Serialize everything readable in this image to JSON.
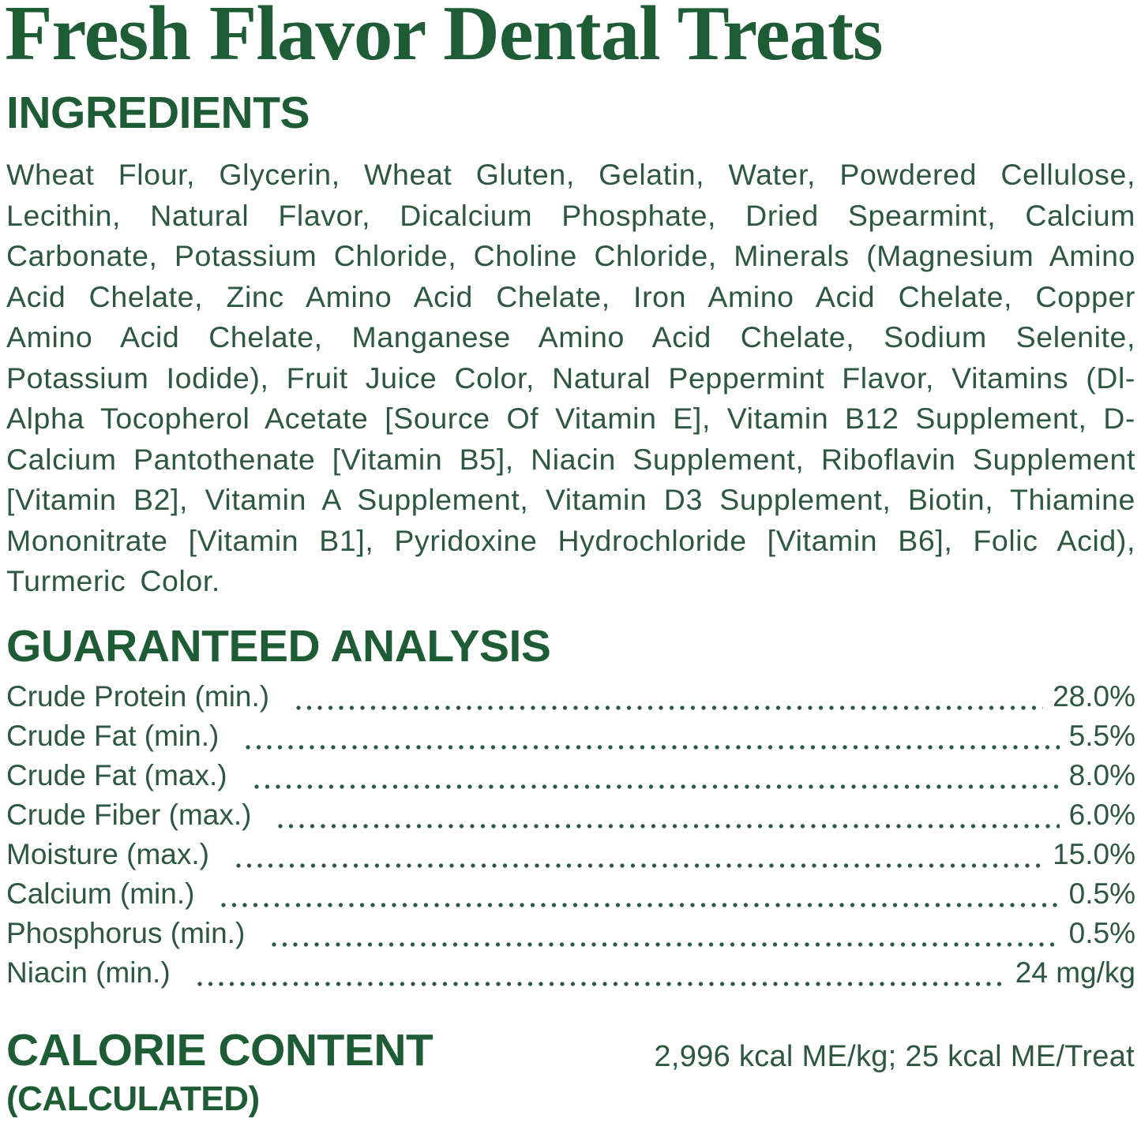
{
  "title": "Fresh Flavor Dental Treats",
  "colors": {
    "heading_green": "#1d5c35",
    "body_green": "#2d5742"
  },
  "ingredients": {
    "heading": "INGREDIENTS",
    "text": "Wheat Flour, Glycerin, Wheat Gluten, Gelatin, Water, Powdered Cellulose, Lecithin, Natural Flavor, Dicalcium Phosphate, Dried Spearmint, Calcium Carbonate, Potassium Chloride, Choline Chloride, Minerals (Magnesium Amino Acid Chelate, Zinc Amino Acid Chelate, Iron Amino Acid Chelate, Copper Amino Acid Chelate, Manganese Amino Acid Chelate, Sodium Selenite, Potassium Iodide), Fruit Juice Color, Natural Peppermint Flavor, Vitamins (Dl-Alpha Tocopherol Acetate [Source Of Vitamin E], Vitamin B12 Supplement, D-Calcium Pantothenate [Vitamin B5], Niacin Supplement, Riboflavin Supplement [Vitamin B2], Vitamin A Supplement, Vitamin D3 Supplement, Biotin, Thiamine Mononitrate [Vitamin B1], Pyridoxine Hydrochloride [Vitamin B6], Folic Acid), Turmeric Color."
  },
  "guaranteed_analysis": {
    "heading": "GUARANTEED ANALYSIS",
    "rows": [
      {
        "label": "Crude Protein (min.)",
        "value": "28.0%"
      },
      {
        "label": "Crude Fat (min.)",
        "value": "5.5%"
      },
      {
        "label": "Crude Fat (max.)",
        "value": "8.0%"
      },
      {
        "label": "Crude Fiber (max.)",
        "value": "6.0%"
      },
      {
        "label": "Moisture (max.)",
        "value": "15.0%"
      },
      {
        "label": "Calcium (min.)",
        "value": "0.5%"
      },
      {
        "label": "Phosphorus (min.)",
        "value": "0.5%"
      },
      {
        "label": "Niacin (min.)",
        "value": "24 mg/kg"
      }
    ]
  },
  "calorie_content": {
    "heading": "CALORIE CONTENT",
    "subheading": "(CALCULATED)",
    "value": "2,996 kcal ME/kg; 25 kcal ME/Treat"
  }
}
